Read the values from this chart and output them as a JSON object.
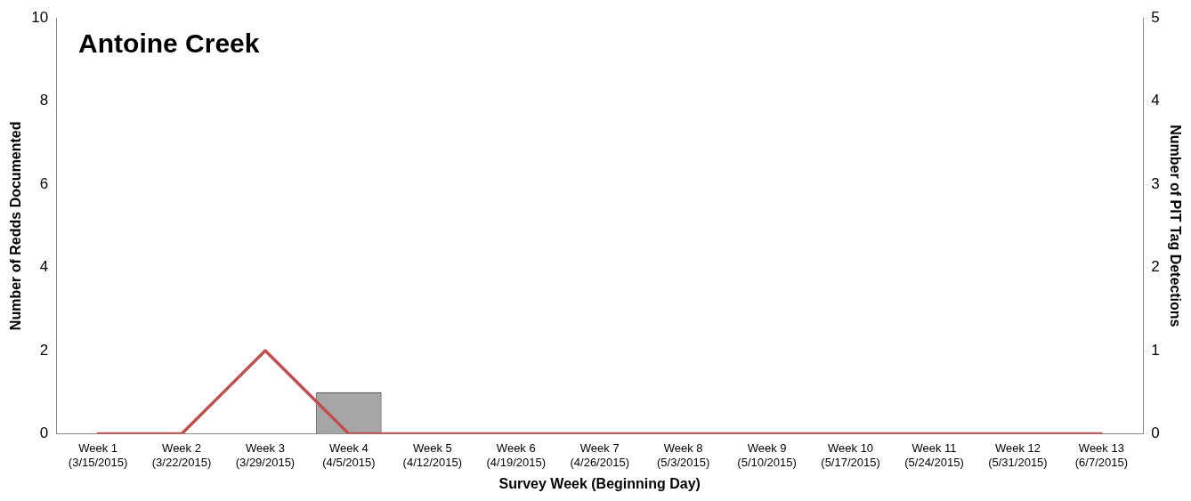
{
  "chart_data": {
    "type": "bar",
    "title": "Antoine Creek",
    "xlabel": "Survey Week (Beginning Day)",
    "ylabel": "Number of Redds Documented",
    "y2label": "Number of PIT Tag Detections",
    "categories": [
      "Week 1\n(3/15/2015)",
      "Week 2\n(3/22/2015)",
      "Week 3\n(3/29/2015)",
      "Week 4\n(4/5/2015)",
      "Week 5\n(4/12/2015)",
      "Week 6\n(4/19/2015)",
      "Week 7\n(4/26/2015)",
      "Week 8\n(5/3/2015)",
      "Week 9\n(5/10/2015)",
      "Week 10\n(5/17/2015)",
      "Week 11\n(5/24/2015)",
      "Week 12\n(5/31/2015)",
      "Week 13\n(6/7/2015)"
    ],
    "series": [
      {
        "color": "#a6a6a6",
        "values": [
          0,
          0,
          0,
          1,
          0,
          0,
          0,
          0,
          0,
          0,
          0,
          0,
          0
        ]
      },
      {
        "type": "line",
        "axis": "y2",
        "color": "#c0504d",
        "values": [
          0,
          0,
          1,
          0,
          0,
          0,
          0,
          0,
          0,
          0,
          0,
          0,
          0
        ]
      }
    ],
    "ylim": [
      0,
      10
    ],
    "yticks": [
      0,
      2,
      4,
      6,
      8,
      10
    ],
    "y2lim": [
      0,
      5
    ],
    "y2ticks": [
      0,
      1,
      2,
      3,
      4,
      5
    ],
    "grid": false,
    "legend": false,
    "marker": "none",
    "line_style": "solid"
  }
}
